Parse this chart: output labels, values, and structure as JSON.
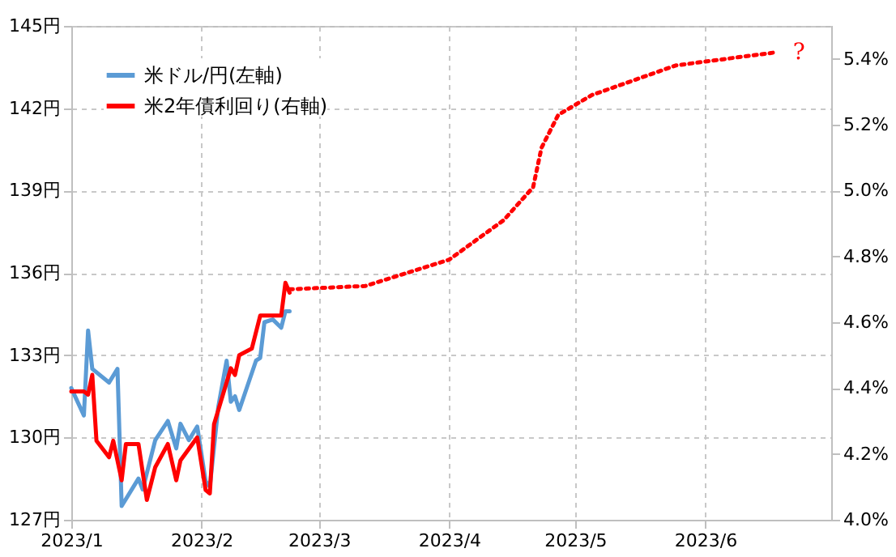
{
  "chart_data": {
    "type": "line",
    "xlim": [
      "2023-01-01",
      "2023-07-01"
    ],
    "xticks": [
      {
        "value": "2023-01-01",
        "label": "2023/1"
      },
      {
        "value": "2023-02-01",
        "label": "2023/2"
      },
      {
        "value": "2023-03-01",
        "label": "2023/3"
      },
      {
        "value": "2023-04-01",
        "label": "2023/4"
      },
      {
        "value": "2023-05-01",
        "label": "2023/5"
      },
      {
        "value": "2023-06-01",
        "label": "2023/6"
      }
    ],
    "ylim": [
      127,
      145
    ],
    "yticks": [
      {
        "value": 127,
        "label": "127円"
      },
      {
        "value": 130,
        "label": "130円"
      },
      {
        "value": 133,
        "label": "133円"
      },
      {
        "value": 136,
        "label": "136円"
      },
      {
        "value": 139,
        "label": "139円"
      },
      {
        "value": 142,
        "label": "142円"
      },
      {
        "value": 145,
        "label": "145円"
      }
    ],
    "y2lim": [
      4.0,
      5.5
    ],
    "y2ticks": [
      {
        "value": 4.0,
        "label": "4.0%"
      },
      {
        "value": 4.2,
        "label": "4.2%"
      },
      {
        "value": 4.4,
        "label": "4.4%"
      },
      {
        "value": 4.6,
        "label": "4.6%"
      },
      {
        "value": 4.8,
        "label": "4.8%"
      },
      {
        "value": 5.0,
        "label": "5.0%"
      },
      {
        "value": 5.2,
        "label": "5.2%"
      },
      {
        "value": 5.4,
        "label": "5.4%"
      }
    ],
    "grid": true,
    "legend": "top left",
    "line_style": "solid",
    "series": [
      {
        "name": "米ドル/円(左軸)",
        "color": "#5b9bd5",
        "x": [
          "2023-01-01",
          "2023-01-04",
          "2023-01-05",
          "2023-01-06",
          "2023-01-10",
          "2023-01-12",
          "2023-01-13",
          "2023-01-17",
          "2023-01-18",
          "2023-01-21",
          "2023-01-24",
          "2023-01-26",
          "2023-01-27",
          "2023-01-29",
          "2023-01-31",
          "2023-02-02",
          "2023-02-03",
          "2023-02-05",
          "2023-02-07",
          "2023-02-08",
          "2023-02-09",
          "2023-02-10",
          "2023-02-14",
          "2023-02-15",
          "2023-02-16",
          "2023-02-18",
          "2023-02-20",
          "2023-02-21",
          "2023-02-22"
        ],
        "values": [
          131.8,
          130.8,
          133.9,
          132.5,
          132.0,
          132.5,
          127.5,
          128.5,
          128.1,
          129.9,
          130.6,
          129.6,
          130.5,
          129.9,
          130.4,
          128.4,
          128.2,
          131.1,
          132.8,
          131.3,
          131.5,
          131.0,
          132.8,
          132.9,
          134.2,
          134.3,
          134.0,
          134.6,
          134.6
        ]
      },
      {
        "name": "米2年債利回り(右軸)",
        "color": "#ff0000",
        "axis": "y2",
        "x": [
          "2023-01-01",
          "2023-01-04",
          "2023-01-05",
          "2023-01-06",
          "2023-01-07",
          "2023-01-10",
          "2023-01-11",
          "2023-01-13",
          "2023-01-14",
          "2023-01-17",
          "2023-01-19",
          "2023-01-21",
          "2023-01-24",
          "2023-01-26",
          "2023-01-27",
          "2023-01-31",
          "2023-02-02",
          "2023-02-03",
          "2023-02-04",
          "2023-02-08",
          "2023-02-09",
          "2023-02-10",
          "2023-02-13",
          "2023-02-15",
          "2023-02-16",
          "2023-02-20",
          "2023-02-21",
          "2023-02-22"
        ],
        "values": [
          4.39,
          4.39,
          4.38,
          4.44,
          4.24,
          4.19,
          4.24,
          4.12,
          4.23,
          4.23,
          4.06,
          4.16,
          4.23,
          4.12,
          4.18,
          4.25,
          4.09,
          4.08,
          4.29,
          4.46,
          4.44,
          4.5,
          4.52,
          4.62,
          4.62,
          4.62,
          4.72,
          4.69
        ]
      },
      {
        "color": "#ff0000",
        "axis": "y2",
        "line_style": "dotted",
        "x": [
          "2023-02-22",
          "2023-03-12",
          "2023-04-01",
          "2023-04-14",
          "2023-04-21",
          "2023-04-23",
          "2023-04-27",
          "2023-05-05",
          "2023-05-25",
          "2023-06-18"
        ],
        "values": [
          4.7,
          4.71,
          4.79,
          4.91,
          5.01,
          5.13,
          5.23,
          5.29,
          5.38,
          5.42
        ]
      }
    ],
    "annotations": [
      "?"
    ]
  }
}
